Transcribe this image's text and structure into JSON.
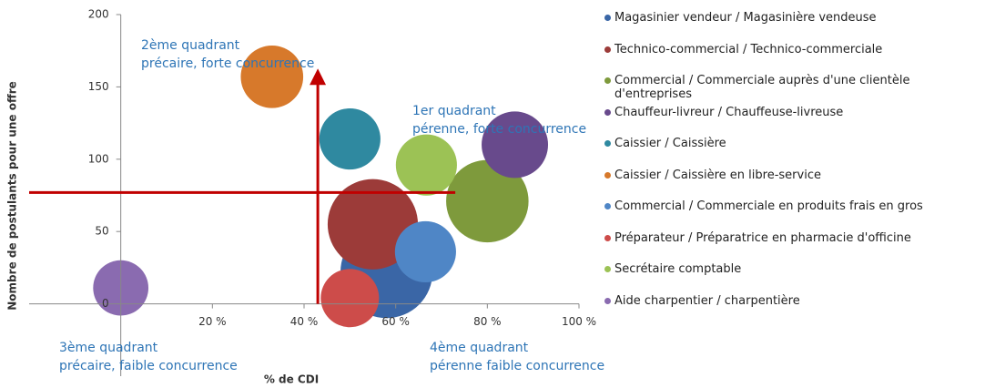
{
  "chart_data": {
    "type": "bubble",
    "xlabel": "% de CDI",
    "ylabel": "Nombre de postulants pour une offre",
    "xlim": [
      -20,
      100
    ],
    "ylim": [
      -50,
      200
    ],
    "xticks": [
      {
        "value": 20,
        "label": "20 %"
      },
      {
        "value": 40,
        "label": "40 %"
      },
      {
        "value": 60,
        "label": "60 %"
      },
      {
        "value": 80,
        "label": "80 %"
      },
      {
        "value": 100,
        "label": "100 %"
      }
    ],
    "yticks": [
      0,
      50,
      100,
      150,
      200
    ],
    "grid": false,
    "legend": "right",
    "series": [
      {
        "name": "Magasinier vendeur / Magasinière vendeuse",
        "color": "#3a66a6",
        "x": 58,
        "y": 22,
        "size": 250
      },
      {
        "name": "Technico-commercial / Technico-commerciale",
        "color": "#9c3b39",
        "x": 55,
        "y": 55,
        "size": 240
      },
      {
        "name": "Commercial / Commerciale auprès d'une clientèle d'entreprises",
        "color": "#7e9a3c",
        "x": 80,
        "y": 71,
        "size": 200
      },
      {
        "name": "Chauffeur-livreur / Chauffeuse-livreuse",
        "color": "#684a8c",
        "x": 86,
        "y": 110,
        "size": 130
      },
      {
        "name": "Caissier / Caissière",
        "color": "#2f89a0",
        "x": 50,
        "y": 114,
        "size": 110
      },
      {
        "name": "Caissier / Caissière en libre-service",
        "color": "#d7792b",
        "x": 33,
        "y": 157,
        "size": 115
      },
      {
        "name": "Commercial / Commerciale en produits frais en gros",
        "color": "#4f86c6",
        "x": 66.5,
        "y": 36,
        "size": 110
      },
      {
        "name": "Préparateur / Préparatrice en pharmacie d'officine",
        "color": "#cd4c4a",
        "x": 50,
        "y": 4,
        "size": 100
      },
      {
        "name": "Secrétaire comptable",
        "color": "#9cc255",
        "x": 66.7,
        "y": 96,
        "size": 110
      },
      {
        "name": "Aide charpentier / charpentière",
        "color": "#8a6bb0",
        "x": 0,
        "y": 11,
        "size": 90
      }
    ],
    "arrows": [
      {
        "color": "#c00000",
        "x": [
          -20,
          73
        ],
        "y": [
          77,
          77
        ]
      },
      {
        "color": "#c00000",
        "x": [
          43,
          43
        ],
        "y": [
          0,
          157
        ]
      }
    ],
    "annotations": [
      {
        "lines": [
          "2ème quadrant",
          "précaire, forte concurrence"
        ]
      },
      {
        "lines": [
          "1er quadrant",
          "pérenne, forte concurrence"
        ]
      },
      {
        "lines": [
          "3ème quadrant",
          "précaire, faible concurrence"
        ]
      },
      {
        "lines": [
          "4ème quadrant",
          "pérenne faible concurrence"
        ]
      }
    ]
  }
}
